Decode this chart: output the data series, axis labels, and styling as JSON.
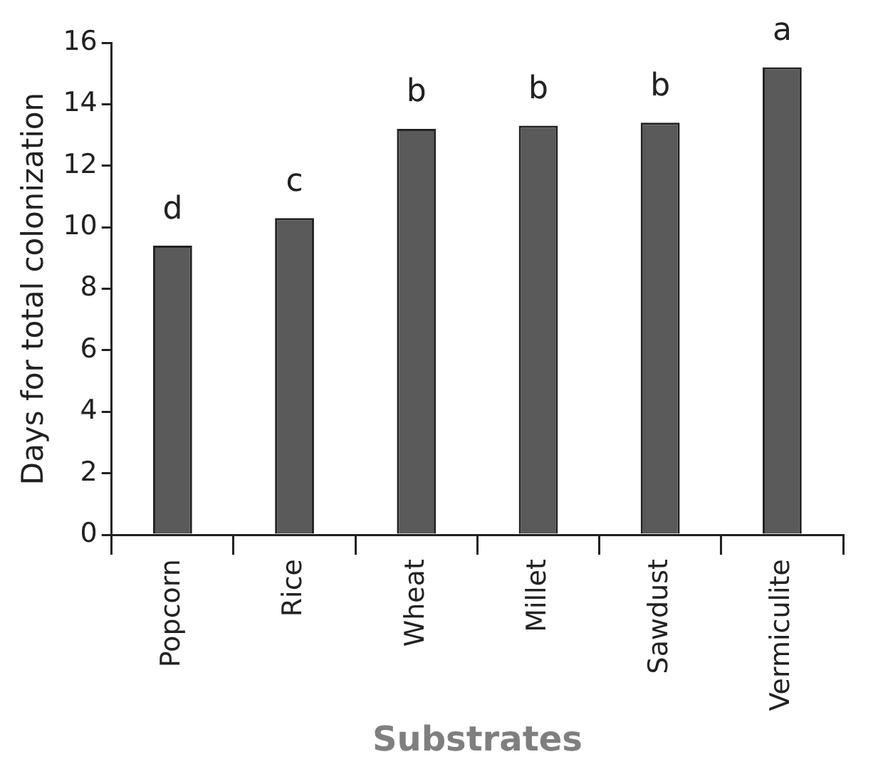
{
  "chart_data": {
    "type": "bar",
    "xlabel": "Substrates",
    "ylabel": "Days for total colonization",
    "categories": [
      "Popcorn",
      "Rice",
      "Wheat",
      "Millet",
      "Sawdust",
      "Vermiculite"
    ],
    "values": [
      9.4,
      10.3,
      13.2,
      13.3,
      13.4,
      15.2
    ],
    "color": "#5a5a5a",
    "ylim": [
      0,
      16
    ],
    "yticks": [
      0,
      2,
      4,
      6,
      8,
      10,
      12,
      14,
      16
    ],
    "grid": false,
    "legend": false,
    "annotations": [
      {
        "text": "d",
        "x": "Popcorn",
        "y": 9.4
      },
      {
        "text": "c",
        "x": "Rice",
        "y": 10.3
      },
      {
        "text": "b",
        "x": "Wheat",
        "y": 13.2
      },
      {
        "text": "b",
        "x": "Millet",
        "y": 13.3
      },
      {
        "text": "b",
        "x": "Sawdust",
        "y": 13.4
      },
      {
        "text": "a",
        "x": "Vermiculite",
        "y": 15.2
      }
    ]
  }
}
